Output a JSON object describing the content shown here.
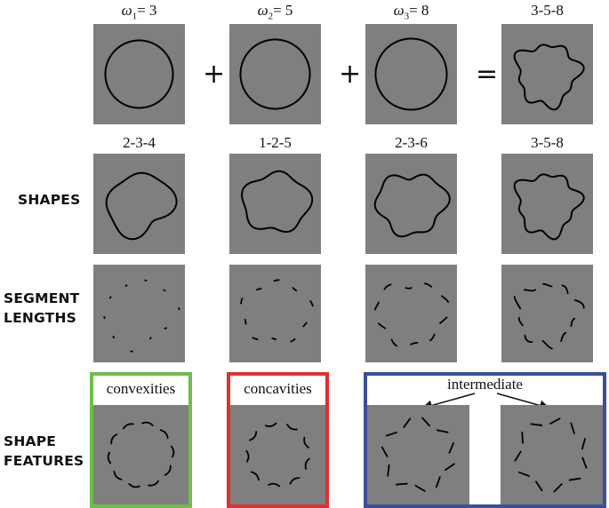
{
  "components": {
    "labels": [
      {
        "sym": "ω",
        "sub": "1",
        "val": "= 3"
      },
      {
        "sym": "ω",
        "sub": "2",
        "val": "= 5"
      },
      {
        "sym": "ω",
        "sub": "3",
        "val": "= 8"
      },
      {
        "text": "3-5-8"
      }
    ],
    "operators": [
      "+",
      "+",
      "="
    ]
  },
  "shapes_row": {
    "row_label": "SHAPES",
    "labels": [
      "2-3-4",
      "1-2-5",
      "2-3-6",
      "3-5-8"
    ]
  },
  "segments_row": {
    "row_label_line1": "SEGMENT",
    "row_label_line2": "LENGTHS"
  },
  "features_row": {
    "row_label_line1": "SHAPE",
    "row_label_line2": "FEATURES",
    "captions": {
      "convexities": "convexities",
      "concavities": "concavities",
      "intermediate": "intermediate"
    }
  },
  "colors": {
    "panel": "#7f7f7f",
    "convexities_frame": "#6cbf4a",
    "concavities_frame": "#e03030",
    "intermediate_frame": "#3a4f96",
    "stroke": "#000000"
  }
}
